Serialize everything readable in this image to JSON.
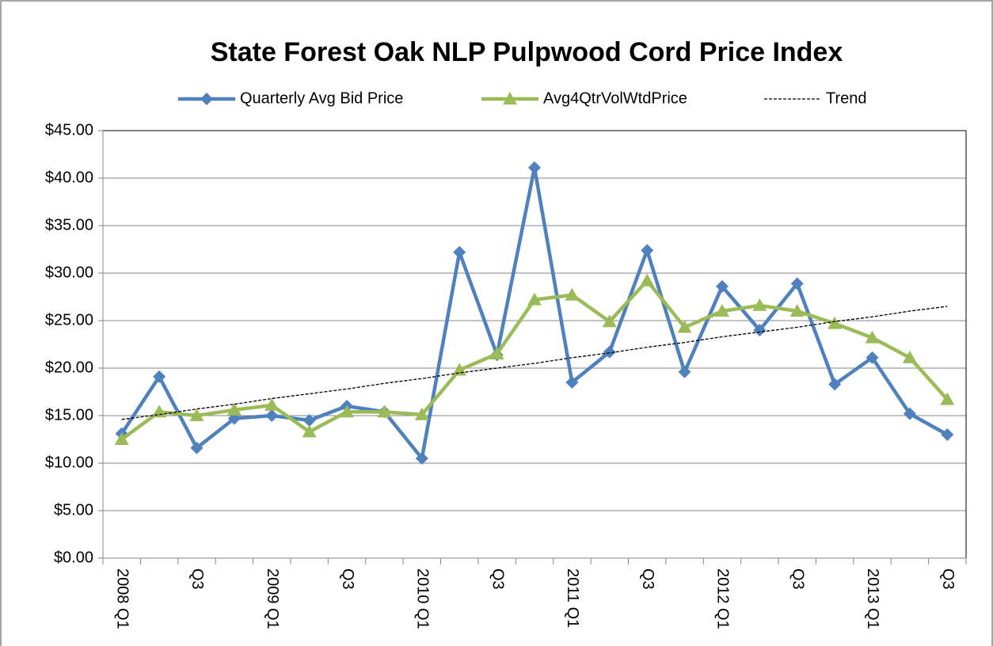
{
  "chart_data": {
    "type": "line",
    "title": "State Forest Oak NLP Pulpwood Cord Price Index",
    "categories": [
      "2008 Q1",
      null,
      "Q3",
      null,
      "2009 Q1",
      null,
      "Q3",
      null,
      "2010 Q1",
      null,
      "Q3",
      null,
      "2011 Q1",
      null,
      "Q3",
      null,
      "2012 Q1",
      null,
      "Q3",
      null,
      "2013 Q1",
      null,
      "Q3"
    ],
    "series": [
      {
        "name": "Quarterly Avg Bid Price",
        "color": "#4f81bd",
        "marker": "diamond",
        "values": [
          13.1,
          19.1,
          11.6,
          14.7,
          15.0,
          14.5,
          16.0,
          15.4,
          10.5,
          32.2,
          21.4,
          41.1,
          18.5,
          21.7,
          32.4,
          19.6,
          28.6,
          24.0,
          28.9,
          18.3,
          21.1,
          15.2,
          13.0
        ]
      },
      {
        "name": "Avg4QtrVolWtdPrice",
        "color": "#9bbb59",
        "marker": "triangle",
        "values": [
          12.5,
          15.4,
          15.0,
          15.6,
          16.1,
          13.3,
          15.4,
          15.4,
          15.1,
          19.8,
          21.5,
          27.2,
          27.7,
          24.9,
          29.2,
          24.3,
          26.0,
          26.6,
          26.0,
          24.7,
          23.2,
          21.1,
          16.7
        ]
      },
      {
        "name": "Trend",
        "color": "#000000",
        "marker": "none",
        "dash": true,
        "values": [
          14.6,
          15.1,
          15.7,
          16.2,
          16.8,
          17.3,
          17.8,
          18.4,
          18.9,
          19.5,
          20.0,
          20.5,
          21.1,
          21.6,
          22.2,
          22.7,
          23.3,
          23.8,
          24.3,
          24.9,
          25.4,
          26.0,
          26.5
        ]
      }
    ],
    "ylim": [
      0,
      45
    ],
    "yticks": [
      {
        "value": 0,
        "label": "$0.00"
      },
      {
        "value": 5,
        "label": "$5.00"
      },
      {
        "value": 10,
        "label": "$10.00"
      },
      {
        "value": 15,
        "label": "$15.00"
      },
      {
        "value": 20,
        "label": "$20.00"
      },
      {
        "value": 25,
        "label": "$25.00"
      },
      {
        "value": 30,
        "label": "$30.00"
      },
      {
        "value": 35,
        "label": "$35.00"
      },
      {
        "value": 40,
        "label": "$40.00"
      },
      {
        "value": 45,
        "label": "$45.00"
      }
    ],
    "grid": true,
    "legend": "top"
  }
}
